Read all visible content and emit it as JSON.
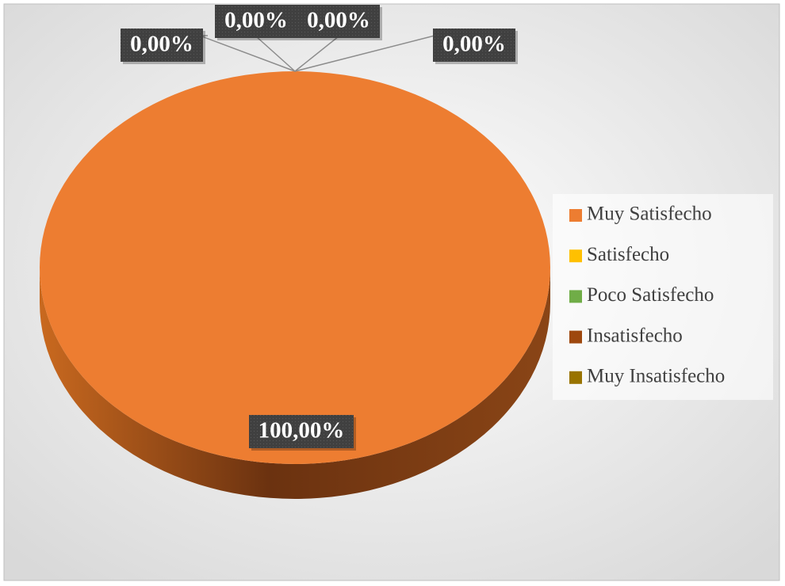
{
  "chart_data": {
    "type": "pie",
    "categories": [
      "Muy Satisfecho",
      "Satisfecho",
      "Poco Satisfecho",
      "Insatisfecho",
      "Muy Insatisfecho"
    ],
    "values": [
      100,
      0,
      0,
      0,
      0
    ],
    "value_labels": [
      "100,00%",
      "0,00%",
      "0,00%",
      "0,00%",
      "0,00%"
    ],
    "colors": [
      "#ED7D31",
      "#FFC000",
      "#70AD47",
      "#9E480E",
      "#997300"
    ],
    "legend": "right"
  }
}
